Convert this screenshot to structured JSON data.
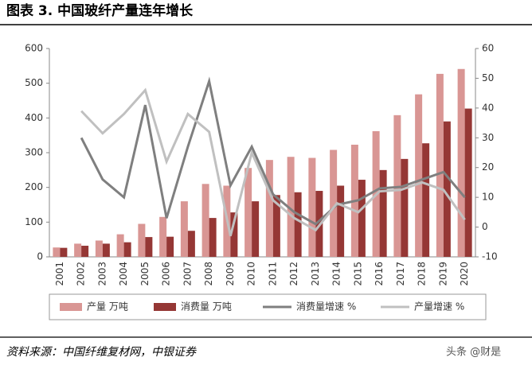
{
  "title": "图表 3. 中国玻纤产量连年增长",
  "source": "资料来源：中国纤维复材网，中银证券",
  "watermark": "头条 @财是",
  "chart_data": {
    "type": "bar-line",
    "categories": [
      "2001",
      "2002",
      "2003",
      "2004",
      "2005",
      "2006",
      "2007",
      "2008",
      "2009",
      "2010",
      "2011",
      "2012",
      "2013",
      "2014",
      "2015",
      "2016",
      "2017",
      "2018",
      "2019",
      "2020"
    ],
    "series": [
      {
        "name": "产量 万吨",
        "type": "bar",
        "color": "#d99694",
        "values": [
          27,
          38,
          47,
          65,
          95,
          115,
          160,
          210,
          205,
          256,
          279,
          288,
          285,
          308,
          323,
          362,
          408,
          468,
          527,
          541
        ]
      },
      {
        "name": "消费量 万吨",
        "type": "bar",
        "color": "#953735",
        "values": [
          26,
          32,
          38,
          42,
          57,
          58,
          75,
          112,
          128,
          160,
          178,
          186,
          190,
          205,
          222,
          250,
          282,
          327,
          390,
          427
        ]
      },
      {
        "name": "消费量增速 %",
        "type": "line",
        "axis": "y2",
        "color": "#7f7f7f",
        "values": [
          null,
          30,
          16,
          10,
          41,
          3,
          27,
          49,
          14,
          27,
          11,
          5,
          1,
          7.5,
          9,
          13,
          13.5,
          16,
          18.5,
          10
        ]
      },
      {
        "name": "产量增速 %",
        "type": "line",
        "axis": "y2",
        "color": "#c0c0c0",
        "values": [
          null,
          39,
          31.5,
          38,
          46,
          22,
          38,
          32,
          -3,
          25,
          9,
          3,
          -1,
          8,
          5,
          12,
          12.5,
          15,
          12.5,
          2.5
        ]
      }
    ],
    "ylim": [
      0,
      600
    ],
    "yticks": [
      0,
      100,
      200,
      300,
      400,
      500,
      600
    ],
    "y2lim": [
      -10,
      60
    ],
    "y2ticks": [
      -10,
      0,
      10,
      20,
      30,
      40,
      50,
      60
    ],
    "grid": false
  }
}
